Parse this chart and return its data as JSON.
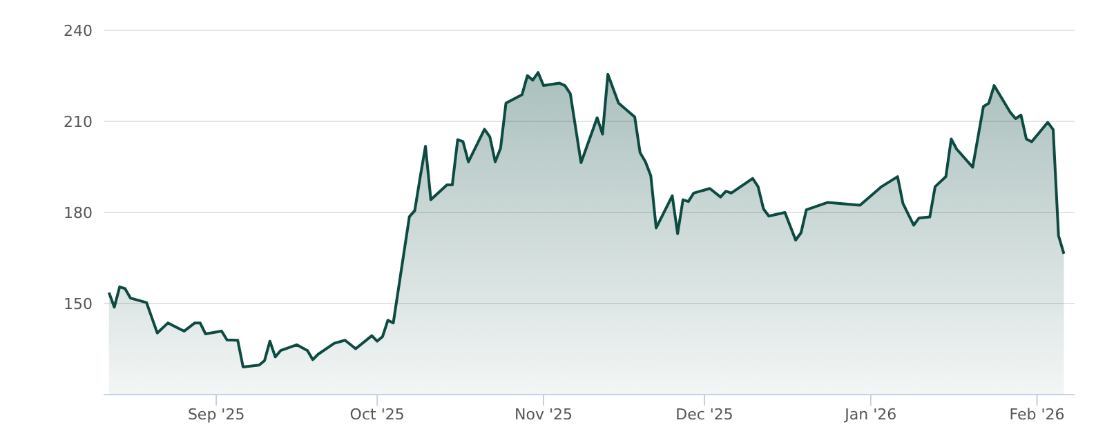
{
  "chart_data": {
    "type": "area",
    "x": [
      "2025-08-12",
      "2025-08-13",
      "2025-08-14",
      "2025-08-15",
      "2025-08-16",
      "2025-08-19",
      "2025-08-21",
      "2025-08-23",
      "2025-08-26",
      "2025-08-28",
      "2025-08-29",
      "2025-08-30",
      "2025-09-02",
      "2025-09-03",
      "2025-09-05",
      "2025-09-06",
      "2025-09-09",
      "2025-09-10",
      "2025-09-11",
      "2025-09-12",
      "2025-09-13",
      "2025-09-16",
      "2025-09-18",
      "2025-09-19",
      "2025-09-20",
      "2025-09-23",
      "2025-09-25",
      "2025-09-27",
      "2025-09-30",
      "2025-10-01",
      "2025-10-02",
      "2025-10-03",
      "2025-10-04",
      "2025-10-07",
      "2025-10-08",
      "2025-10-09",
      "2025-10-10",
      "2025-10-11",
      "2025-10-14",
      "2025-10-15",
      "2025-10-16",
      "2025-10-17",
      "2025-10-18",
      "2025-10-21",
      "2025-10-22",
      "2025-10-23",
      "2025-10-24",
      "2025-10-25",
      "2025-10-28",
      "2025-10-29",
      "2025-10-30",
      "2025-10-31",
      "2025-11-01",
      "2025-11-04",
      "2025-11-05",
      "2025-11-06",
      "2025-11-08",
      "2025-11-11",
      "2025-11-12",
      "2025-11-13",
      "2025-11-15",
      "2025-11-18",
      "2025-11-19",
      "2025-11-20",
      "2025-11-21",
      "2025-11-22",
      "2025-11-25",
      "2025-11-26",
      "2025-11-27",
      "2025-11-28",
      "2025-11-29",
      "2025-12-02",
      "2025-12-04",
      "2025-12-05",
      "2025-12-06",
      "2025-12-10",
      "2025-12-11",
      "2025-12-12",
      "2025-12-13",
      "2025-12-16",
      "2025-12-18",
      "2025-12-19",
      "2025-12-20",
      "2025-12-24",
      "2025-12-30",
      "2026-01-03",
      "2026-01-06",
      "2026-01-07",
      "2026-01-09",
      "2026-01-10",
      "2026-01-12",
      "2026-01-13",
      "2026-01-15",
      "2026-01-16",
      "2026-01-17",
      "2026-01-20",
      "2026-01-22",
      "2026-01-23",
      "2026-01-24",
      "2026-01-27",
      "2026-01-28",
      "2026-01-29",
      "2026-01-30",
      "2026-01-31",
      "2026-02-03",
      "2026-02-04",
      "2026-02-05",
      "2026-02-06"
    ],
    "series": [
      {
        "color": "#0d4a42",
        "values": [
          153.6,
          148.8,
          155.5,
          154.9,
          151.8,
          150.3,
          140.3,
          143.6,
          140.9,
          143.6,
          143.6,
          140,
          140.9,
          138,
          137.9,
          129.1,
          129.7,
          131.2,
          137.6,
          132.4,
          134.5,
          136.4,
          134.5,
          131.5,
          133.3,
          136.9,
          137.9,
          135.1,
          139.4,
          137.6,
          139.1,
          144.5,
          143.6,
          178.6,
          180.6,
          191.5,
          201.8,
          184.2,
          189.1,
          189.1,
          204,
          203.3,
          196.7,
          207.4,
          204.9,
          196.7,
          201.2,
          216,
          218.8,
          225.1,
          223.6,
          226.1,
          221.8,
          222.6,
          221.8,
          219.1,
          196.4,
          211.2,
          205.8,
          225.5,
          216,
          211.5,
          199.7,
          196.7,
          192.1,
          174.9,
          185.5,
          173,
          184.2,
          183.6,
          186.4,
          187.9,
          185.1,
          187,
          186.4,
          191.2,
          188.5,
          181.2,
          178.8,
          180,
          170.9,
          173.3,
          180.9,
          183.3,
          182.4,
          188.5,
          191.8,
          183,
          175.8,
          178.2,
          178.5,
          188.5,
          191.8,
          204.2,
          200.9,
          194.9,
          214.9,
          216,
          221.8,
          213,
          210.9,
          212.1,
          204.2,
          203.3,
          209.7,
          207.3,
          172.4,
          166.4
        ]
      }
    ],
    "xlim": [
      "2025-08-11",
      "2026-02-08"
    ],
    "xticks": [
      {
        "value": "2025-09-01",
        "label": "Sep '25"
      },
      {
        "value": "2025-10-01",
        "label": "Oct '25"
      },
      {
        "value": "2025-11-01",
        "label": "Nov '25"
      },
      {
        "value": "2025-12-01",
        "label": "Dec '25"
      },
      {
        "value": "2026-01-01",
        "label": "Jan '26"
      },
      {
        "value": "2026-02-01",
        "label": "Feb '26"
      }
    ],
    "ylim": [
      120,
      240
    ],
    "yticks": [
      150,
      180,
      210,
      240
    ],
    "grid": "y",
    "legend": false
  }
}
